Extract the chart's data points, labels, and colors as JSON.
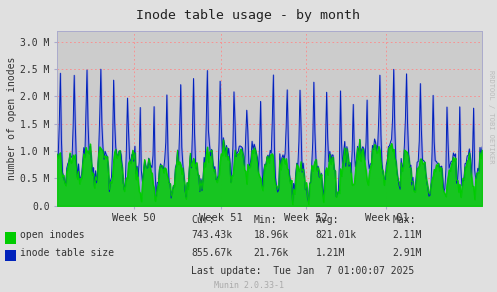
{
  "title": "Inode table usage - by month",
  "ylabel": "number of open inodes",
  "xlabel_ticks": [
    "Week 50",
    "Week 51",
    "Week 52",
    "Week 01"
  ],
  "xlabel_tick_positions": [
    0.18,
    0.385,
    0.585,
    0.775
  ],
  "ylim": [
    0,
    3200000
  ],
  "yticks": [
    0,
    500000,
    1000000,
    1500000,
    2000000,
    2500000,
    3000000
  ],
  "ytick_labels": [
    "0.0",
    "0.5 M",
    "1.0 M",
    "1.5 M",
    "2.0 M",
    "2.5 M",
    "3.0 M"
  ],
  "bg_color": "#e0e0e0",
  "plot_bg_color": "#cccccc",
  "green_color": "#00cc00",
  "blue_line_color": "#0022bb",
  "blue_fill_color": "#9999dd",
  "legend1_label": "open inodes",
  "legend2_label": "inode table size",
  "cur1": "743.43k",
  "cur2": "855.67k",
  "min1": "18.96k",
  "min2": "21.76k",
  "avg1": "821.01k",
  "avg2": "1.21M",
  "max1": "2.11M",
  "max2": "2.91M",
  "last_update": "Last update:  Tue Jan  7 01:00:07 2025",
  "watermark": "RRDTOOL / TOBI OETIKER",
  "munin_label": "Munin 2.0.33-1",
  "n_points": 400,
  "seed": 42
}
